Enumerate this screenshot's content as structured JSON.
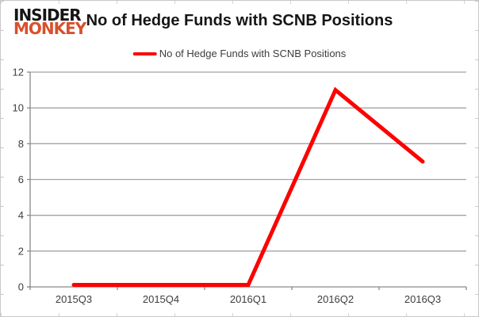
{
  "logo": {
    "line1": "INSIDER",
    "line2": "MONKEY",
    "line1_color": "#151515",
    "line2_color": "#d8502d"
  },
  "header": {
    "title": "No of Hedge Funds with SCNB Positions"
  },
  "legend": {
    "label": "No of Hedge Funds with SCNB Positions",
    "swatch_color": "#fe0000"
  },
  "colors": {
    "series_line": "#fe0000",
    "gridline": "#a3a3a3",
    "axis": "#8a8a8a",
    "tick_label": "#3d3d3d",
    "background": "#ffffff"
  },
  "chart_data": {
    "type": "line",
    "title": "No of Hedge Funds with SCNB Positions",
    "categories": [
      "2015Q3",
      "2015Q4",
      "2016Q1",
      "2016Q2",
      "2016Q3"
    ],
    "series": [
      {
        "name": "No of Hedge Funds with SCNB Positions",
        "values": [
          0,
          0,
          0,
          11,
          7
        ],
        "color": "#fe0000"
      }
    ],
    "xlabel": "",
    "ylabel": "",
    "ylim": [
      0,
      12
    ],
    "ytick_step": 2,
    "grid": true,
    "legend_position": "top-center"
  }
}
